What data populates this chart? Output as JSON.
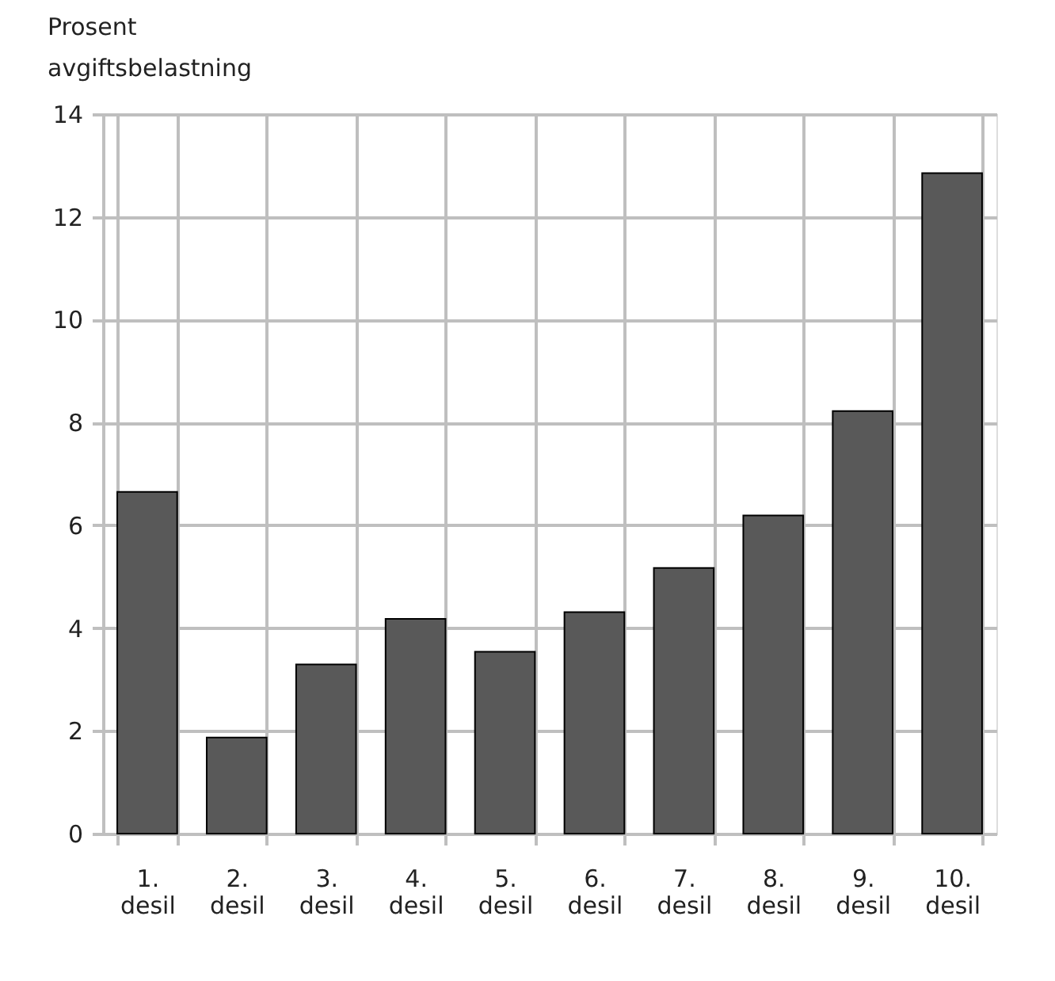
{
  "chart_data": {
    "type": "bar",
    "ylabel": "Prosent avgiftsbelastning",
    "categories": [
      "1. desil",
      "2. desil",
      "3. desil",
      "4. desil",
      "5. desil",
      "6. desil",
      "7. desil",
      "8. desil",
      "9. desil",
      "10. desil"
    ],
    "values": [
      6.65,
      1.87,
      3.29,
      4.18,
      3.54,
      4.31,
      5.17,
      6.19,
      8.22,
      12.85
    ],
    "color": "#595959",
    "ylim": [
      0,
      14
    ],
    "yticks": [
      0,
      2,
      4,
      6,
      8,
      10,
      12,
      14
    ],
    "grid": true
  }
}
